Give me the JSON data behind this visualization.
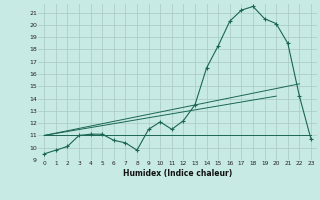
{
  "bg_color": "#c8eae4",
  "grid_color": "#a8c8c4",
  "line_color": "#1a6655",
  "xlabel": "Humidex (Indice chaleur)",
  "xlim": [
    -0.5,
    23.5
  ],
  "ylim": [
    9,
    21.7
  ],
  "yticks": [
    9,
    10,
    11,
    12,
    13,
    14,
    15,
    16,
    17,
    18,
    19,
    20,
    21
  ],
  "xticks": [
    0,
    1,
    2,
    3,
    4,
    5,
    6,
    7,
    8,
    9,
    10,
    11,
    12,
    13,
    14,
    15,
    16,
    17,
    18,
    19,
    20,
    21,
    22,
    23
  ],
  "curve1_x": [
    0,
    1,
    2,
    3,
    4,
    5,
    6,
    7,
    8,
    9,
    10,
    11,
    12,
    13,
    14,
    15,
    16,
    17,
    18,
    19,
    20,
    21,
    22,
    23
  ],
  "curve1_y": [
    9.5,
    9.8,
    10.1,
    11.0,
    11.1,
    11.1,
    10.6,
    10.4,
    9.8,
    11.5,
    12.1,
    11.5,
    12.2,
    13.5,
    16.5,
    18.3,
    20.3,
    21.2,
    21.5,
    20.5,
    20.1,
    18.5,
    14.2,
    10.7
  ],
  "line2_x": [
    0,
    23
  ],
  "line2_y": [
    11.0,
    11.0
  ],
  "line3_x": [
    0,
    22
  ],
  "line3_y": [
    11.0,
    15.2
  ],
  "line4_x": [
    0,
    20
  ],
  "line4_y": [
    11.0,
    14.2
  ]
}
